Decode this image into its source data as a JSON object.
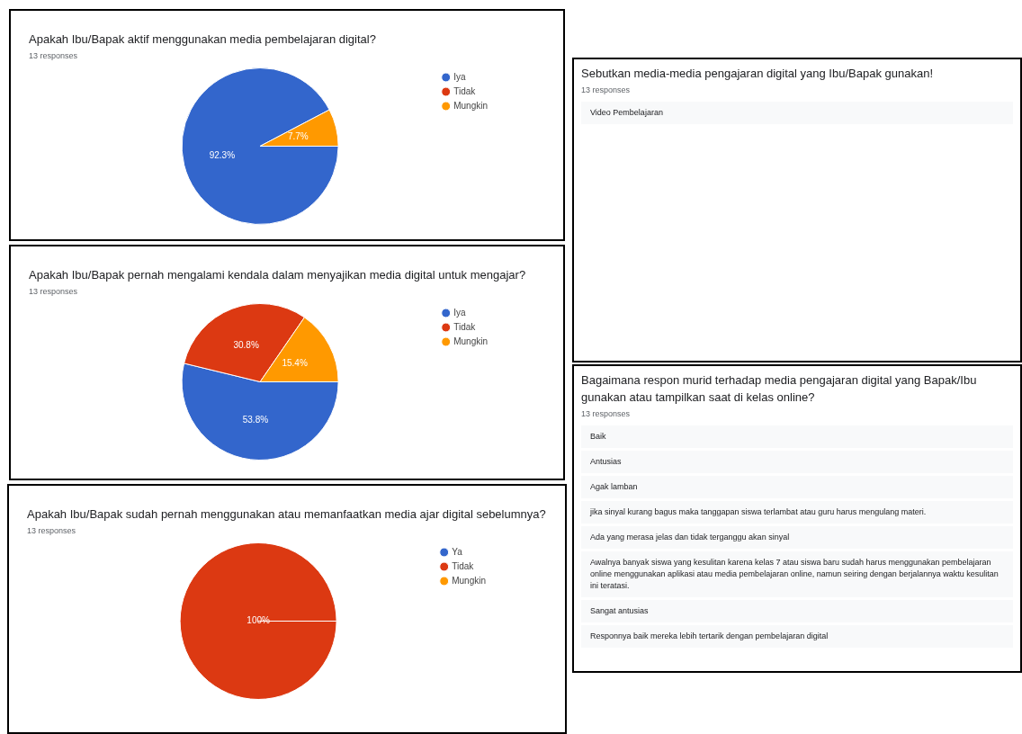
{
  "chart_data": [
    {
      "type": "pie",
      "title": "Apakah Ibu/Bapak aktif menggunakan media pembelajaran digital?",
      "subtitle": "13 responses",
      "categories": [
        "Iya",
        "Tidak",
        "Mungkin"
      ],
      "values": [
        92.3,
        0,
        7.7
      ],
      "colors": [
        "#3366cc",
        "#dc3912",
        "#ff9900"
      ],
      "value_labels": [
        "92.3%",
        null,
        "7.7%"
      ],
      "legend": "right"
    },
    {
      "type": "other",
      "title": "Sebutkan media-media pengajaran digital yang Ibu/Bapak gunakan!",
      "subtitle": "13 responses",
      "annotations": [
        "Video Pembelajaran"
      ]
    },
    {
      "type": "pie",
      "title": "Apakah Ibu/Bapak pernah mengalami kendala dalam menyajikan media digital untuk mengajar?",
      "subtitle": "13 responses",
      "categories": [
        "Iya",
        "Tidak",
        "Mungkin"
      ],
      "values": [
        53.8,
        30.8,
        15.4
      ],
      "colors": [
        "#3366cc",
        "#dc3912",
        "#ff9900"
      ],
      "value_labels": [
        "53.8%",
        "30.8%",
        "15.4%"
      ],
      "legend": "right"
    },
    {
      "type": "other",
      "title": "Bagaimana respon murid terhadap media pengajaran digital yang Bapak/Ibu gunakan atau tampilkan saat di kelas online?",
      "subtitle": "13 responses",
      "annotations": [
        "Baik",
        "Antusias",
        "Agak lamban",
        "jika sinyal kurang bagus maka tanggapan siswa terlambat atau guru harus mengulang materi.",
        "Ada yang merasa jelas dan tidak terganggu akan sinyal",
        "Awalnya banyak siswa yang kesulitan karena kelas 7 atau siswa baru sudah harus menggunakan pembelajaran online menggunakan aplikasi atau media pembelajaran online, namun seiring dengan berjalannya waktu kesulitan ini teratasi.",
        "Sangat antusias",
        "Responnya baik mereka lebih tertarik dengan pembelajaran digital"
      ]
    },
    {
      "type": "pie",
      "title": "Apakah Ibu/Bapak sudah pernah menggunakan atau memanfaatkan media ajar digital sebelumnya?",
      "subtitle": "13 responses",
      "categories": [
        "Ya",
        "Tidak",
        "Mungkin"
      ],
      "values": [
        0,
        100,
        0
      ],
      "colors": [
        "#3366cc",
        "#dc3912",
        "#ff9900"
      ],
      "value_labels": [
        null,
        "100%",
        null
      ],
      "legend": "right"
    }
  ]
}
